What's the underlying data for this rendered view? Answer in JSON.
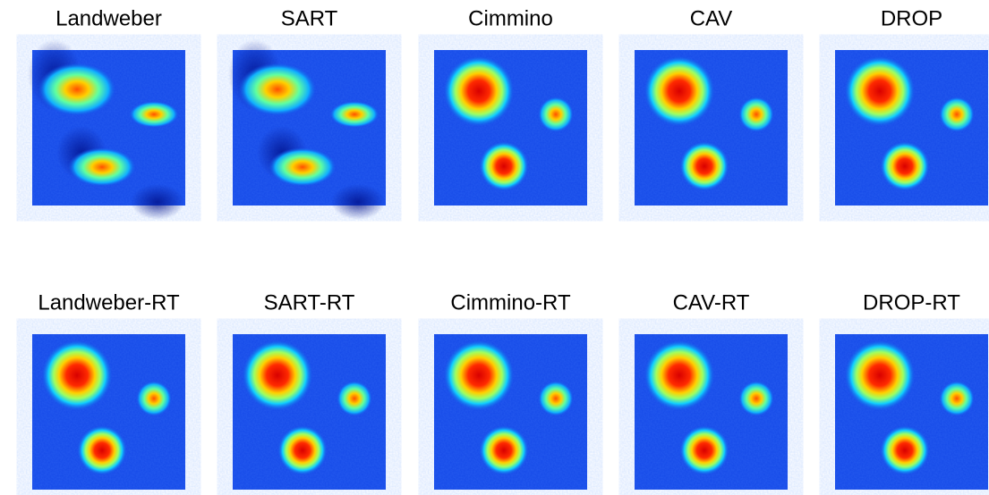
{
  "panels": [
    {
      "title": "Landweber"
    },
    {
      "title": "SART"
    },
    {
      "title": "Cimmino"
    },
    {
      "title": "CAV"
    },
    {
      "title": "DROP"
    },
    {
      "title": "Landweber-RT"
    },
    {
      "title": "SART-RT"
    },
    {
      "title": "Cimmino-RT"
    },
    {
      "title": "CAV-RT"
    },
    {
      "title": "DROP-RT"
    }
  ]
}
